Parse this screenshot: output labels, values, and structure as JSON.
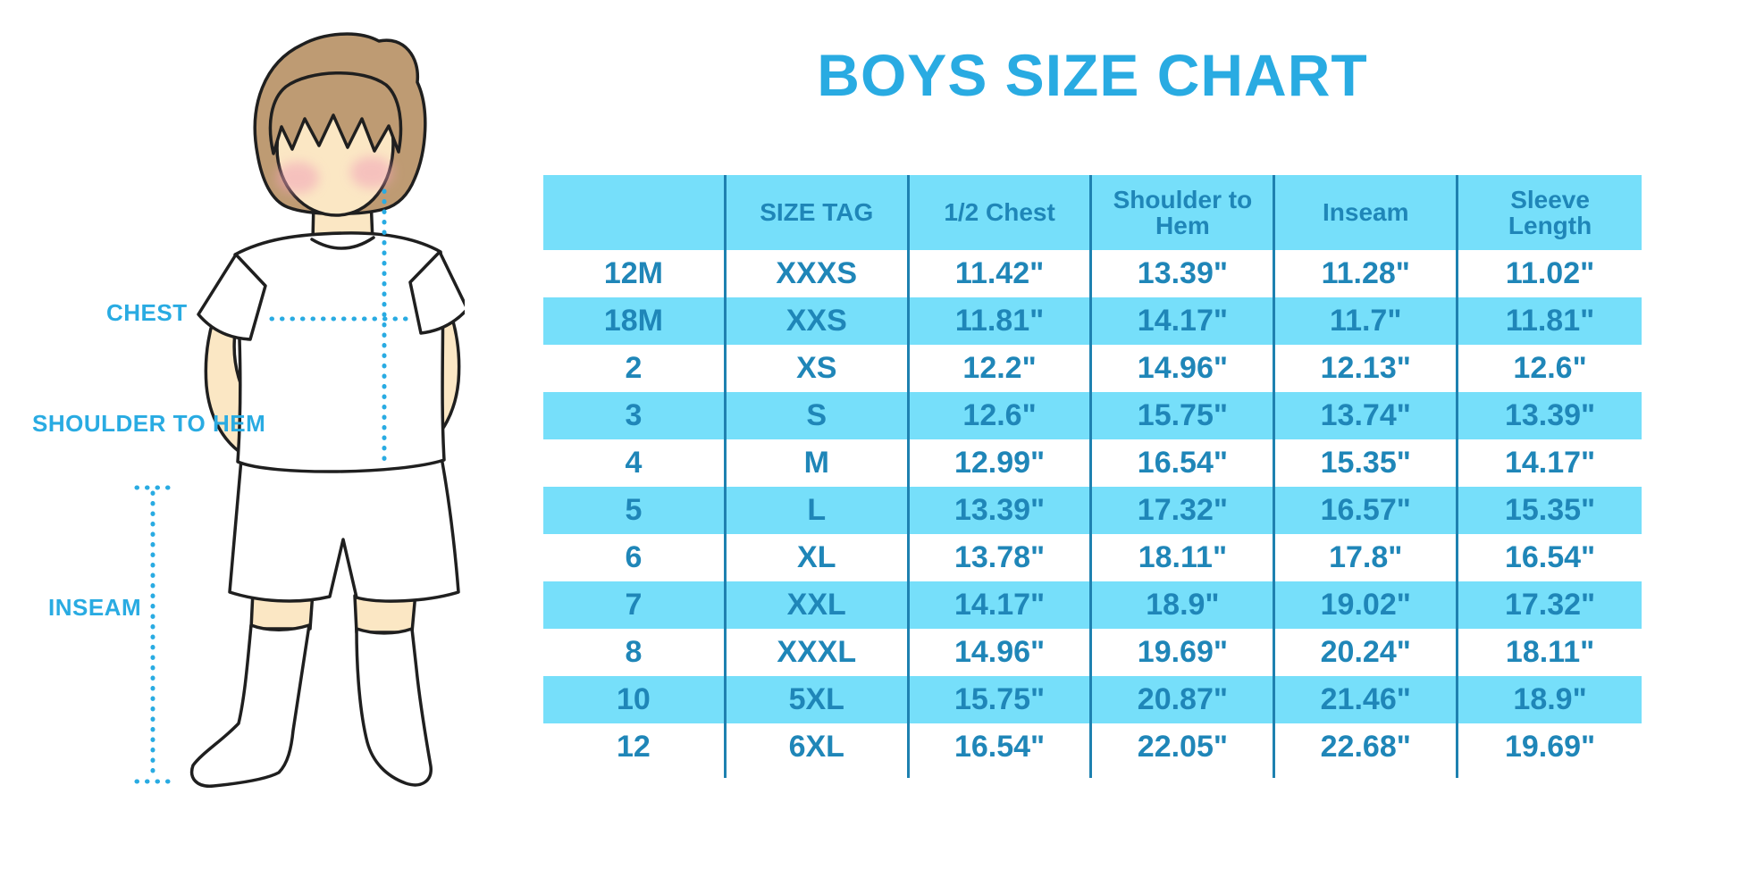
{
  "title": "BOYS SIZE CHART",
  "diagram": {
    "description": "cartoon-boy-with-measurement-lines",
    "labels": {
      "chest": "CHEST",
      "shoulder_to_hem": "SHOULDER TO HEM",
      "inseam": "INSEAM"
    }
  },
  "colors": {
    "accent_blue": "#29ABE2",
    "band_cyan": "#76DFFA",
    "table_text_blue": "#1F86B8",
    "column_line_blue": "#1E81B0",
    "skin": "#FBE7C4",
    "hair_brown": "#BE9B73",
    "blush_pink": "#F1A3B8",
    "outline_black": "#1F1F1F"
  },
  "chart_data": {
    "type": "table",
    "title": "BOYS SIZE CHART",
    "columns": [
      "",
      "SIZE TAG",
      "1/2 Chest",
      "Shoulder to Hem",
      "Inseam",
      "Sleeve Length"
    ],
    "rows": [
      [
        "12M",
        "XXXS",
        "11.42\"",
        "13.39\"",
        "11.28\"",
        "11.02\""
      ],
      [
        "18M",
        "XXS",
        "11.81\"",
        "14.17\"",
        "11.7\"",
        "11.81\""
      ],
      [
        "2",
        "XS",
        "12.2\"",
        "14.96\"",
        "12.13\"",
        "12.6\""
      ],
      [
        "3",
        "S",
        "12.6\"",
        "15.75\"",
        "13.74\"",
        "13.39\""
      ],
      [
        "4",
        "M",
        "12.99\"",
        "16.54\"",
        "15.35\"",
        "14.17\""
      ],
      [
        "5",
        "L",
        "13.39\"",
        "17.32\"",
        "16.57\"",
        "15.35\""
      ],
      [
        "6",
        "XL",
        "13.78\"",
        "18.11\"",
        "17.8\"",
        "16.54\""
      ],
      [
        "7",
        "XXL",
        "14.17\"",
        "18.9\"",
        "19.02\"",
        "17.32\""
      ],
      [
        "8",
        "XXXL",
        "14.96\"",
        "19.69\"",
        "20.24\"",
        "18.11\""
      ],
      [
        "10",
        "5XL",
        "15.75\"",
        "20.87\"",
        "21.46\"",
        "18.9\""
      ],
      [
        "12",
        "6XL",
        "16.54\"",
        "22.05\"",
        "22.68\"",
        "19.69\""
      ]
    ],
    "layout_hints": {
      "header_background": "#76DFFA",
      "alternating_row_background": [
        "#ffffff",
        "#76DFFA"
      ],
      "units": "inches"
    }
  }
}
